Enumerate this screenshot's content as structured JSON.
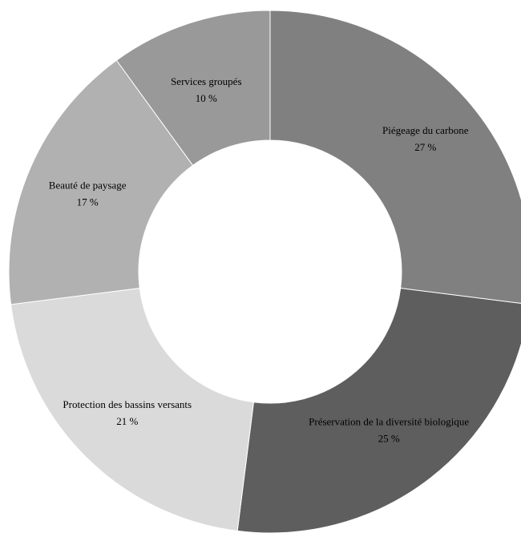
{
  "chart_data": {
    "type": "pie",
    "variant": "donut",
    "start_angle_deg_clockwise_from_top": 0,
    "legend": "none",
    "slices": [
      {
        "label": "Piégeage du carbone",
        "value": 27,
        "value_label": "27 %",
        "color": "#808080"
      },
      {
        "label": "Préservation de la diversité biologique",
        "value": 25,
        "value_label": "25 %",
        "color": "#5e5e5e"
      },
      {
        "label": "Protection des bassins versants",
        "value": 21,
        "value_label": "21 %",
        "color": "#dadada"
      },
      {
        "label": "Beauté de paysage",
        "value": 17,
        "value_label": "17 %",
        "color": "#b1b1b1"
      },
      {
        "label": "Services groupés",
        "value": 10,
        "value_label": "10 %",
        "color": "#999999"
      }
    ]
  }
}
